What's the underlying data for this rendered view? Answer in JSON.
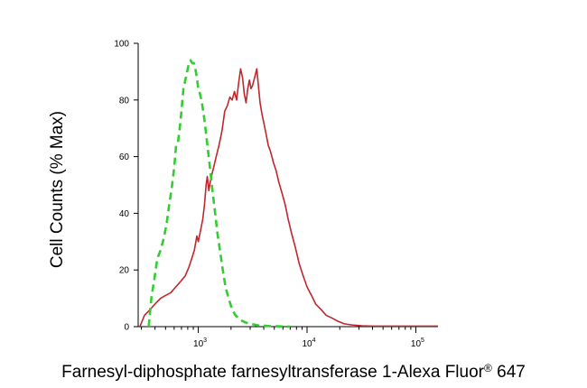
{
  "chart_data": {
    "type": "line",
    "title": "",
    "xlabel": "Farnesyl-diphosphate farnesyltransferase 1-Alexa Fluor",
    "xlabel_mark": "®",
    "xlabel_tail": " 647",
    "ylabel": "Cell Counts (% Max)",
    "x_scale": "log",
    "xlim": [
      280,
      160000
    ],
    "ylim": [
      0,
      100
    ],
    "x_ticks": [
      {
        "value": 1000,
        "base": "10",
        "exp": "3"
      },
      {
        "value": 10000,
        "base": "10",
        "exp": "4"
      },
      {
        "value": 100000,
        "base": "10",
        "exp": "5"
      }
    ],
    "y_ticks": [
      0,
      20,
      40,
      60,
      80,
      100
    ],
    "grid": false,
    "legend": "none",
    "series": [
      {
        "color": "#c0272d",
        "style": "solid",
        "points": [
          [
            290,
            0
          ],
          [
            320,
            4
          ],
          [
            360,
            6
          ],
          [
            400,
            8
          ],
          [
            450,
            10
          ],
          [
            500,
            11
          ],
          [
            560,
            12
          ],
          [
            620,
            14
          ],
          [
            690,
            16
          ],
          [
            760,
            18
          ],
          [
            820,
            21
          ],
          [
            870,
            24
          ],
          [
            920,
            27
          ],
          [
            970,
            32
          ],
          [
            1000,
            30
          ],
          [
            1050,
            34
          ],
          [
            1100,
            38
          ],
          [
            1140,
            43
          ],
          [
            1180,
            50
          ],
          [
            1210,
            53
          ],
          [
            1250,
            48
          ],
          [
            1300,
            52
          ],
          [
            1380,
            56
          ],
          [
            1460,
            60
          ],
          [
            1550,
            64
          ],
          [
            1650,
            69
          ],
          [
            1750,
            76
          ],
          [
            1850,
            78
          ],
          [
            1950,
            81
          ],
          [
            2050,
            80
          ],
          [
            2150,
            83
          ],
          [
            2250,
            80
          ],
          [
            2350,
            86
          ],
          [
            2450,
            91
          ],
          [
            2550,
            88
          ],
          [
            2650,
            82
          ],
          [
            2750,
            79
          ],
          [
            2850,
            84
          ],
          [
            2950,
            87
          ],
          [
            3050,
            84
          ],
          [
            3150,
            85
          ],
          [
            3300,
            88
          ],
          [
            3450,
            91
          ],
          [
            3550,
            86
          ],
          [
            3700,
            79
          ],
          [
            3850,
            75
          ],
          [
            4000,
            72
          ],
          [
            4200,
            68
          ],
          [
            4400,
            64
          ],
          [
            4600,
            62
          ],
          [
            4900,
            58
          ],
          [
            5200,
            55
          ],
          [
            5500,
            51
          ],
          [
            5900,
            47
          ],
          [
            6300,
            43
          ],
          [
            6700,
            38
          ],
          [
            7200,
            33
          ],
          [
            7800,
            28
          ],
          [
            8500,
            22
          ],
          [
            9200,
            18
          ],
          [
            10000,
            14
          ],
          [
            11000,
            11
          ],
          [
            12000,
            8
          ],
          [
            13500,
            6
          ],
          [
            15000,
            4
          ],
          [
            17000,
            3
          ],
          [
            19000,
            2
          ],
          [
            22000,
            1
          ],
          [
            26000,
            0.6
          ],
          [
            32000,
            0.3
          ],
          [
            40000,
            0.2
          ],
          [
            60000,
            0.2
          ],
          [
            100000,
            0.2
          ],
          [
            160000,
            0.2
          ]
        ]
      },
      {
        "color": "#33cc33",
        "style": "dashed",
        "points": [
          [
            350,
            0
          ],
          [
            370,
            10
          ],
          [
            395,
            17
          ],
          [
            420,
            24
          ],
          [
            450,
            27
          ],
          [
            480,
            31
          ],
          [
            510,
            36
          ],
          [
            540,
            43
          ],
          [
            570,
            49
          ],
          [
            600,
            56
          ],
          [
            625,
            64
          ],
          [
            650,
            65
          ],
          [
            675,
            70
          ],
          [
            700,
            76
          ],
          [
            730,
            84
          ],
          [
            760,
            87
          ],
          [
            790,
            90
          ],
          [
            820,
            93
          ],
          [
            850,
            94
          ],
          [
            880,
            93
          ],
          [
            910,
            93
          ],
          [
            940,
            91
          ],
          [
            970,
            88
          ],
          [
            1000,
            84
          ],
          [
            1040,
            82
          ],
          [
            1080,
            79
          ],
          [
            1130,
            74
          ],
          [
            1180,
            68
          ],
          [
            1230,
            62
          ],
          [
            1290,
            55
          ],
          [
            1350,
            48
          ],
          [
            1420,
            41
          ],
          [
            1500,
            33
          ],
          [
            1580,
            27
          ],
          [
            1680,
            20
          ],
          [
            1780,
            14
          ],
          [
            1900,
            10
          ],
          [
            2050,
            6
          ],
          [
            2200,
            4
          ],
          [
            2400,
            2.5
          ],
          [
            2700,
            1.5
          ],
          [
            3000,
            1
          ],
          [
            3500,
            0.5
          ],
          [
            4500,
            0.2
          ],
          [
            7000,
            0
          ]
        ]
      }
    ]
  }
}
